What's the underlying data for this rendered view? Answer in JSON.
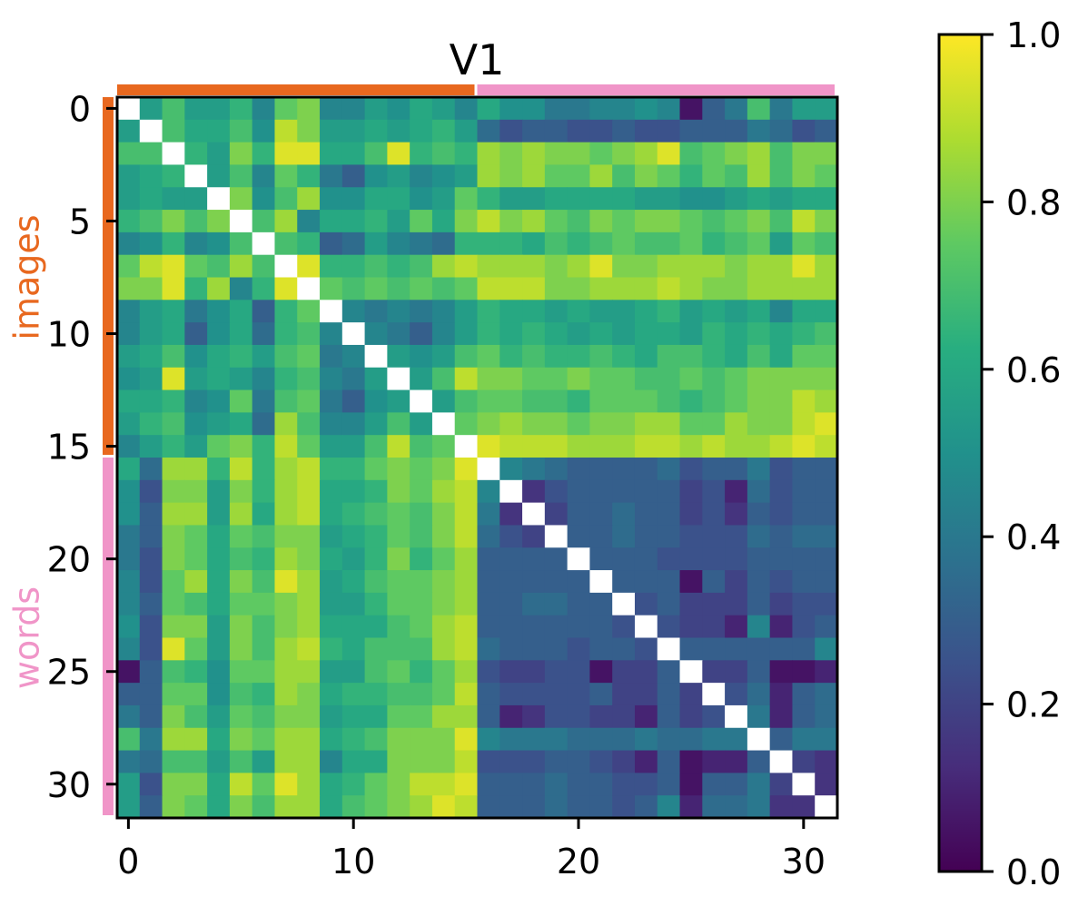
{
  "chart_data": {
    "type": "heatmap",
    "title": "V1",
    "n": 32,
    "xticks": [
      0,
      10,
      20,
      30
    ],
    "yticks": [
      0,
      5,
      10,
      15,
      20,
      25,
      30
    ],
    "groups": [
      {
        "label": "images",
        "start": 0,
        "end": 15,
        "color": "#e8681f"
      },
      {
        "label": "words",
        "start": 16,
        "end": 31,
        "color": "#f095c8"
      }
    ],
    "colorbar": {
      "range": [
        0.0,
        1.0
      ],
      "ticks": [
        "0.0",
        "0.2",
        "0.4",
        "0.6",
        "0.8",
        "1.0"
      ],
      "colormap": "viridis"
    },
    "diagonal_color": "#ffffff",
    "block_means": {
      "images_images": 0.62,
      "images_words": 0.74,
      "words_images": 0.72,
      "words_words": 0.25
    },
    "values": [
      [
        1.0,
        0.55,
        0.7,
        0.55,
        0.55,
        0.65,
        0.45,
        0.75,
        0.8,
        0.45,
        0.45,
        0.55,
        0.5,
        0.6,
        0.55,
        0.45,
        0.6,
        0.5,
        0.5,
        0.4,
        0.4,
        0.45,
        0.45,
        0.5,
        0.45,
        0.05,
        0.3,
        0.4,
        0.7,
        0.4,
        0.55,
        0.55
      ],
      [
        0.55,
        1.0,
        0.7,
        0.6,
        0.6,
        0.7,
        0.5,
        0.9,
        0.8,
        0.55,
        0.55,
        0.6,
        0.55,
        0.6,
        0.65,
        0.55,
        0.35,
        0.25,
        0.3,
        0.3,
        0.25,
        0.25,
        0.3,
        0.25,
        0.25,
        0.3,
        0.3,
        0.3,
        0.4,
        0.35,
        0.25,
        0.3
      ],
      [
        0.7,
        0.7,
        1.0,
        0.65,
        0.55,
        0.8,
        0.65,
        0.95,
        0.95,
        0.6,
        0.6,
        0.7,
        0.95,
        0.65,
        0.7,
        0.65,
        0.85,
        0.8,
        0.85,
        0.8,
        0.8,
        0.75,
        0.8,
        0.85,
        0.95,
        0.7,
        0.75,
        0.8,
        0.85,
        0.7,
        0.8,
        0.8
      ],
      [
        0.55,
        0.6,
        0.65,
        1.0,
        0.55,
        0.7,
        0.45,
        0.75,
        0.65,
        0.4,
        0.3,
        0.5,
        0.55,
        0.45,
        0.5,
        0.55,
        0.85,
        0.8,
        0.85,
        0.75,
        0.75,
        0.85,
        0.7,
        0.8,
        0.75,
        0.65,
        0.75,
        0.7,
        0.85,
        0.7,
        0.8,
        0.75
      ],
      [
        0.55,
        0.6,
        0.55,
        0.55,
        1.0,
        0.8,
        0.5,
        0.7,
        0.85,
        0.5,
        0.5,
        0.6,
        0.6,
        0.5,
        0.55,
        0.75,
        0.65,
        0.55,
        0.55,
        0.6,
        0.6,
        0.6,
        0.6,
        0.55,
        0.55,
        0.5,
        0.5,
        0.55,
        0.6,
        0.55,
        0.6,
        0.6
      ],
      [
        0.65,
        0.7,
        0.8,
        0.7,
        0.8,
        1.0,
        0.7,
        0.85,
        0.45,
        0.6,
        0.6,
        0.65,
        0.55,
        0.75,
        0.6,
        0.8,
        0.9,
        0.8,
        0.85,
        0.75,
        0.7,
        0.8,
        0.75,
        0.8,
        0.8,
        0.75,
        0.7,
        0.75,
        0.8,
        0.7,
        0.9,
        0.8
      ],
      [
        0.45,
        0.5,
        0.65,
        0.45,
        0.5,
        0.7,
        1.0,
        0.7,
        0.65,
        0.3,
        0.35,
        0.55,
        0.45,
        0.4,
        0.35,
        0.65,
        0.65,
        0.65,
        0.6,
        0.7,
        0.65,
        0.7,
        0.75,
        0.7,
        0.7,
        0.75,
        0.65,
        0.7,
        0.75,
        0.55,
        0.75,
        0.7
      ],
      [
        0.75,
        0.9,
        0.95,
        0.75,
        0.7,
        0.85,
        0.7,
        1.0,
        0.95,
        0.65,
        0.65,
        0.7,
        0.65,
        0.7,
        0.85,
        0.9,
        0.85,
        0.85,
        0.85,
        0.8,
        0.85,
        0.95,
        0.8,
        0.8,
        0.85,
        0.85,
        0.85,
        0.8,
        0.85,
        0.85,
        0.95,
        0.85
      ],
      [
        0.8,
        0.8,
        0.95,
        0.65,
        0.85,
        0.45,
        0.65,
        0.95,
        1.0,
        0.75,
        0.7,
        0.75,
        0.7,
        0.75,
        0.7,
        0.75,
        0.9,
        0.9,
        0.9,
        0.8,
        0.8,
        0.85,
        0.85,
        0.85,
        0.9,
        0.85,
        0.8,
        0.8,
        0.85,
        0.85,
        0.85,
        0.85
      ],
      [
        0.45,
        0.55,
        0.6,
        0.4,
        0.5,
        0.6,
        0.3,
        0.65,
        0.75,
        1.0,
        0.45,
        0.4,
        0.45,
        0.4,
        0.45,
        0.55,
        0.65,
        0.6,
        0.6,
        0.55,
        0.6,
        0.55,
        0.55,
        0.6,
        0.65,
        0.55,
        0.6,
        0.55,
        0.6,
        0.45,
        0.6,
        0.6
      ],
      [
        0.45,
        0.55,
        0.6,
        0.3,
        0.5,
        0.6,
        0.35,
        0.65,
        0.7,
        0.45,
        1.0,
        0.45,
        0.4,
        0.3,
        0.45,
        0.55,
        0.65,
        0.6,
        0.65,
        0.6,
        0.55,
        0.6,
        0.55,
        0.6,
        0.6,
        0.55,
        0.65,
        0.6,
        0.65,
        0.6,
        0.65,
        0.7
      ],
      [
        0.55,
        0.6,
        0.7,
        0.5,
        0.6,
        0.65,
        0.55,
        0.7,
        0.75,
        0.4,
        0.45,
        1.0,
        0.55,
        0.5,
        0.55,
        0.7,
        0.75,
        0.65,
        0.7,
        0.65,
        0.65,
        0.7,
        0.65,
        0.6,
        0.7,
        0.7,
        0.65,
        0.6,
        0.7,
        0.6,
        0.75,
        0.75
      ],
      [
        0.5,
        0.55,
        0.95,
        0.55,
        0.6,
        0.55,
        0.45,
        0.65,
        0.7,
        0.45,
        0.4,
        0.55,
        1.0,
        0.55,
        0.7,
        0.9,
        0.8,
        0.8,
        0.75,
        0.75,
        0.8,
        0.75,
        0.75,
        0.7,
        0.7,
        0.75,
        0.7,
        0.75,
        0.8,
        0.8,
        0.8,
        0.8
      ],
      [
        0.6,
        0.6,
        0.65,
        0.45,
        0.5,
        0.75,
        0.4,
        0.7,
        0.75,
        0.4,
        0.3,
        0.5,
        0.55,
        1.0,
        0.55,
        0.7,
        0.75,
        0.75,
        0.7,
        0.7,
        0.65,
        0.75,
        0.75,
        0.75,
        0.7,
        0.65,
        0.7,
        0.75,
        0.8,
        0.8,
        0.9,
        0.85
      ],
      [
        0.55,
        0.65,
        0.7,
        0.5,
        0.55,
        0.6,
        0.35,
        0.85,
        0.7,
        0.45,
        0.45,
        0.55,
        0.7,
        0.55,
        1.0,
        0.75,
        0.8,
        0.85,
        0.8,
        0.8,
        0.75,
        0.8,
        0.8,
        0.85,
        0.85,
        0.75,
        0.75,
        0.85,
        0.8,
        0.8,
        0.9,
        0.95
      ],
      [
        0.45,
        0.55,
        0.65,
        0.55,
        0.75,
        0.8,
        0.65,
        0.9,
        0.75,
        0.55,
        0.55,
        0.7,
        0.9,
        0.7,
        0.75,
        1.0,
        0.95,
        0.9,
        0.9,
        0.9,
        0.85,
        0.85,
        0.85,
        0.9,
        0.9,
        0.85,
        0.9,
        0.85,
        0.85,
        0.9,
        0.95,
        0.9
      ],
      [
        0.6,
        0.35,
        0.85,
        0.85,
        0.65,
        0.9,
        0.65,
        0.85,
        0.9,
        0.65,
        0.65,
        0.75,
        0.8,
        0.75,
        0.8,
        0.95,
        1.0,
        0.45,
        0.4,
        0.35,
        0.3,
        0.3,
        0.3,
        0.3,
        0.35,
        0.25,
        0.3,
        0.3,
        0.4,
        0.25,
        0.3,
        0.3
      ],
      [
        0.5,
        0.25,
        0.8,
        0.8,
        0.55,
        0.8,
        0.65,
        0.85,
        0.9,
        0.6,
        0.6,
        0.65,
        0.8,
        0.75,
        0.85,
        0.9,
        0.45,
        1.0,
        0.15,
        0.25,
        0.3,
        0.3,
        0.3,
        0.3,
        0.3,
        0.2,
        0.25,
        0.1,
        0.35,
        0.25,
        0.3,
        0.3
      ],
      [
        0.5,
        0.3,
        0.85,
        0.85,
        0.55,
        0.85,
        0.6,
        0.85,
        0.9,
        0.6,
        0.65,
        0.7,
        0.75,
        0.7,
        0.8,
        0.9,
        0.4,
        0.15,
        1.0,
        0.2,
        0.3,
        0.3,
        0.35,
        0.3,
        0.3,
        0.2,
        0.25,
        0.15,
        0.3,
        0.25,
        0.3,
        0.3
      ],
      [
        0.4,
        0.3,
        0.8,
        0.75,
        0.6,
        0.75,
        0.7,
        0.8,
        0.8,
        0.55,
        0.6,
        0.65,
        0.75,
        0.7,
        0.8,
        0.9,
        0.35,
        0.25,
        0.2,
        1.0,
        0.3,
        0.3,
        0.35,
        0.3,
        0.3,
        0.25,
        0.25,
        0.25,
        0.35,
        0.3,
        0.35,
        0.35
      ],
      [
        0.4,
        0.25,
        0.8,
        0.75,
        0.6,
        0.7,
        0.65,
        0.85,
        0.8,
        0.6,
        0.55,
        0.65,
        0.8,
        0.65,
        0.75,
        0.85,
        0.3,
        0.3,
        0.3,
        0.3,
        1.0,
        0.3,
        0.3,
        0.3,
        0.25,
        0.25,
        0.25,
        0.25,
        0.3,
        0.3,
        0.3,
        0.3
      ],
      [
        0.45,
        0.25,
        0.75,
        0.85,
        0.6,
        0.8,
        0.7,
        0.95,
        0.85,
        0.55,
        0.6,
        0.7,
        0.75,
        0.75,
        0.8,
        0.85,
        0.3,
        0.3,
        0.3,
        0.3,
        0.3,
        1.0,
        0.3,
        0.3,
        0.3,
        0.05,
        0.3,
        0.2,
        0.3,
        0.25,
        0.3,
        0.3
      ],
      [
        0.45,
        0.3,
        0.75,
        0.7,
        0.6,
        0.75,
        0.75,
        0.8,
        0.85,
        0.55,
        0.55,
        0.65,
        0.75,
        0.75,
        0.8,
        0.85,
        0.3,
        0.3,
        0.35,
        0.35,
        0.3,
        0.3,
        1.0,
        0.25,
        0.3,
        0.2,
        0.2,
        0.2,
        0.3,
        0.2,
        0.25,
        0.25
      ],
      [
        0.5,
        0.25,
        0.8,
        0.8,
        0.55,
        0.8,
        0.7,
        0.8,
        0.85,
        0.6,
        0.6,
        0.6,
        0.7,
        0.75,
        0.85,
        0.9,
        0.3,
        0.3,
        0.3,
        0.3,
        0.3,
        0.3,
        0.25,
        1.0,
        0.25,
        0.2,
        0.2,
        0.1,
        0.45,
        0.1,
        0.25,
        0.3
      ],
      [
        0.45,
        0.25,
        0.95,
        0.75,
        0.55,
        0.8,
        0.7,
        0.85,
        0.9,
        0.65,
        0.6,
        0.7,
        0.7,
        0.7,
        0.85,
        0.9,
        0.35,
        0.3,
        0.3,
        0.3,
        0.25,
        0.3,
        0.3,
        0.25,
        1.0,
        0.3,
        0.3,
        0.3,
        0.3,
        0.3,
        0.3,
        0.45
      ],
      [
        0.05,
        0.3,
        0.7,
        0.65,
        0.5,
        0.75,
        0.75,
        0.85,
        0.85,
        0.55,
        0.55,
        0.7,
        0.75,
        0.65,
        0.75,
        0.85,
        0.25,
        0.2,
        0.2,
        0.25,
        0.25,
        0.05,
        0.2,
        0.2,
        0.3,
        1.0,
        0.2,
        0.2,
        0.3,
        0.05,
        0.05,
        0.1
      ],
      [
        0.3,
        0.3,
        0.75,
        0.75,
        0.5,
        0.7,
        0.65,
        0.85,
        0.8,
        0.6,
        0.65,
        0.65,
        0.7,
        0.7,
        0.75,
        0.9,
        0.3,
        0.25,
        0.25,
        0.25,
        0.25,
        0.3,
        0.2,
        0.2,
        0.3,
        0.2,
        1.0,
        0.25,
        0.35,
        0.1,
        0.3,
        0.35
      ],
      [
        0.4,
        0.3,
        0.8,
        0.7,
        0.55,
        0.75,
        0.7,
        0.8,
        0.8,
        0.55,
        0.6,
        0.6,
        0.75,
        0.75,
        0.85,
        0.85,
        0.3,
        0.1,
        0.15,
        0.25,
        0.25,
        0.2,
        0.2,
        0.1,
        0.3,
        0.2,
        0.25,
        1.0,
        0.4,
        0.1,
        0.3,
        0.35
      ],
      [
        0.7,
        0.4,
        0.85,
        0.85,
        0.6,
        0.8,
        0.75,
        0.85,
        0.85,
        0.6,
        0.65,
        0.7,
        0.8,
        0.8,
        0.8,
        0.95,
        0.45,
        0.4,
        0.4,
        0.4,
        0.35,
        0.35,
        0.35,
        0.4,
        0.35,
        0.35,
        0.4,
        0.4,
        1.0,
        0.3,
        0.4,
        0.4
      ],
      [
        0.4,
        0.35,
        0.7,
        0.7,
        0.55,
        0.7,
        0.55,
        0.85,
        0.85,
        0.45,
        0.6,
        0.6,
        0.8,
        0.8,
        0.8,
        0.9,
        0.25,
        0.25,
        0.25,
        0.3,
        0.3,
        0.25,
        0.2,
        0.1,
        0.3,
        0.05,
        0.1,
        0.1,
        0.3,
        1.0,
        0.2,
        0.15
      ],
      [
        0.55,
        0.25,
        0.8,
        0.8,
        0.6,
        0.9,
        0.75,
        0.95,
        0.85,
        0.6,
        0.65,
        0.75,
        0.8,
        0.9,
        0.9,
        0.95,
        0.3,
        0.3,
        0.3,
        0.35,
        0.3,
        0.3,
        0.25,
        0.25,
        0.3,
        0.05,
        0.3,
        0.3,
        0.4,
        0.2,
        1.0,
        0.15
      ],
      [
        0.55,
        0.3,
        0.8,
        0.75,
        0.6,
        0.8,
        0.7,
        0.85,
        0.85,
        0.6,
        0.7,
        0.75,
        0.8,
        0.85,
        0.95,
        0.9,
        0.3,
        0.3,
        0.3,
        0.35,
        0.3,
        0.3,
        0.25,
        0.3,
        0.45,
        0.1,
        0.35,
        0.35,
        0.4,
        0.15,
        0.15,
        1.0
      ]
    ]
  }
}
